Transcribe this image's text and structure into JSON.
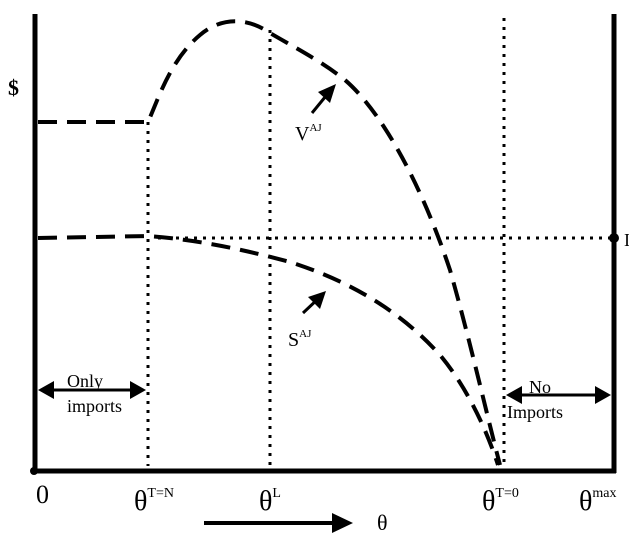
{
  "figure": {
    "y_axis_label": "$",
    "x_axis_arrow_label": "θ",
    "x_ticks": [
      {
        "id": "zero",
        "base": "0",
        "sup": ""
      },
      {
        "id": "tn",
        "base": "θ",
        "sup": "T=N"
      },
      {
        "id": "l",
        "base": "θ",
        "sup": "L"
      },
      {
        "id": "t0",
        "base": "θ",
        "sup": "T=0"
      },
      {
        "id": "max",
        "base": "θ",
        "sup": "max"
      }
    ],
    "curves": [
      {
        "id": "v",
        "base": "V",
        "sup": "AJ"
      },
      {
        "id": "s",
        "base": "S",
        "sup": "AJ"
      }
    ],
    "regions": {
      "only_imports": [
        "Only",
        "imports"
      ],
      "no_imports": [
        "No",
        "Imports"
      ]
    },
    "right_edge_label": "I"
  }
}
